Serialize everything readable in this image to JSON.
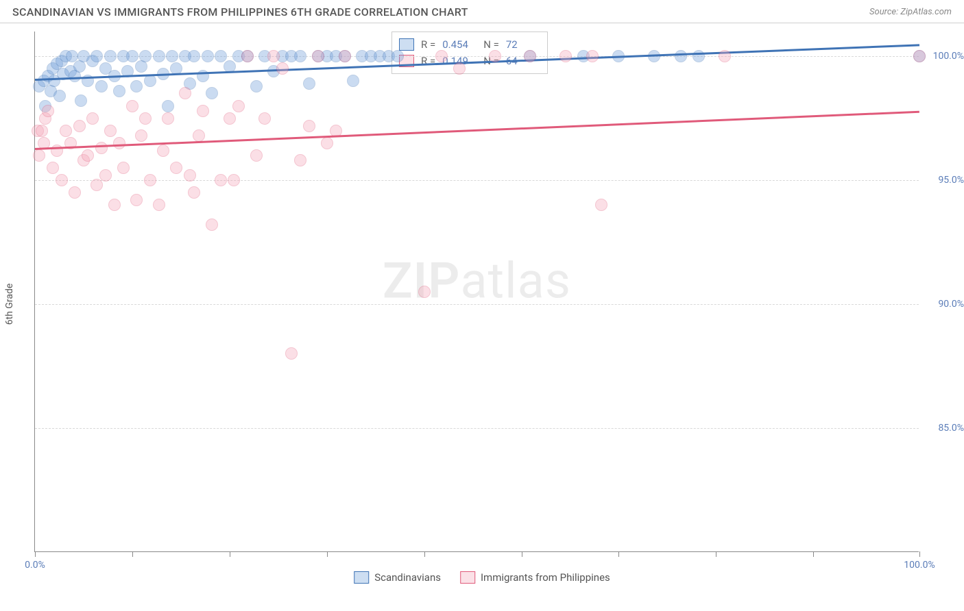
{
  "header": {
    "title": "SCANDINAVIAN VS IMMIGRANTS FROM PHILIPPINES 6TH GRADE CORRELATION CHART",
    "source": "Source: ZipAtlas.com"
  },
  "chart": {
    "type": "scatter",
    "ylabel": "6th Grade",
    "xlim": [
      0,
      100
    ],
    "ylim": [
      80,
      101
    ],
    "xtick_positions": [
      0,
      11,
      22,
      33,
      44,
      55,
      66,
      77,
      88,
      100
    ],
    "xtick_labels": {
      "0": "0.0%",
      "100": "100.0%"
    },
    "ytick_positions": [
      85,
      90,
      95,
      100
    ],
    "ytick_labels": {
      "85": "85.0%",
      "90": "90.0%",
      "95": "95.0%",
      "100": "100.0%"
    },
    "grid_color": "#d8d8d8",
    "background_color": "#ffffff",
    "marker_radius": 9,
    "marker_opacity": 0.35,
    "watermark": "ZIPatlas",
    "series": [
      {
        "name": "Scandinavians",
        "color_fill": "#6a9bd8",
        "color_stroke": "#3f73b5",
        "R": "0.454",
        "N": "72",
        "trend": {
          "x1": 0,
          "y1": 99.1,
          "x2": 100,
          "y2": 100.5,
          "color": "#3f73b5"
        },
        "points": [
          [
            0.5,
            98.8
          ],
          [
            1,
            99.0
          ],
          [
            1.2,
            98.0
          ],
          [
            1.5,
            99.2
          ],
          [
            1.8,
            98.6
          ],
          [
            2,
            99.5
          ],
          [
            2.2,
            99.0
          ],
          [
            2.5,
            99.7
          ],
          [
            2.8,
            98.4
          ],
          [
            3,
            99.8
          ],
          [
            3.2,
            99.3
          ],
          [
            3.5,
            100.0
          ],
          [
            4,
            99.4
          ],
          [
            4.2,
            100.0
          ],
          [
            4.5,
            99.2
          ],
          [
            5,
            99.6
          ],
          [
            5.2,
            98.2
          ],
          [
            5.5,
            100.0
          ],
          [
            6,
            99.0
          ],
          [
            6.5,
            99.8
          ],
          [
            7,
            100.0
          ],
          [
            7.5,
            98.8
          ],
          [
            8,
            99.5
          ],
          [
            8.5,
            100.0
          ],
          [
            9,
            99.2
          ],
          [
            9.5,
            98.6
          ],
          [
            10,
            100.0
          ],
          [
            10.5,
            99.4
          ],
          [
            11,
            100.0
          ],
          [
            11.5,
            98.8
          ],
          [
            12,
            99.6
          ],
          [
            12.5,
            100.0
          ],
          [
            13,
            99.0
          ],
          [
            14,
            100.0
          ],
          [
            14.5,
            99.3
          ],
          [
            15,
            98.0
          ],
          [
            15.5,
            100.0
          ],
          [
            16,
            99.5
          ],
          [
            17,
            100.0
          ],
          [
            17.5,
            98.9
          ],
          [
            18,
            100.0
          ],
          [
            19,
            99.2
          ],
          [
            19.5,
            100.0
          ],
          [
            20,
            98.5
          ],
          [
            21,
            100.0
          ],
          [
            22,
            99.6
          ],
          [
            23,
            100.0
          ],
          [
            24,
            100.0
          ],
          [
            25,
            98.8
          ],
          [
            26,
            100.0
          ],
          [
            27,
            99.4
          ],
          [
            28,
            100.0
          ],
          [
            29,
            100.0
          ],
          [
            30,
            100.0
          ],
          [
            31,
            98.9
          ],
          [
            32,
            100.0
          ],
          [
            33,
            100.0
          ],
          [
            34,
            100.0
          ],
          [
            35,
            100.0
          ],
          [
            36,
            99.0
          ],
          [
            37,
            100.0
          ],
          [
            38,
            100.0
          ],
          [
            39,
            100.0
          ],
          [
            40,
            100.0
          ],
          [
            41,
            100.0
          ],
          [
            56,
            100.0
          ],
          [
            62,
            100.0
          ],
          [
            66,
            100.0
          ],
          [
            70,
            100.0
          ],
          [
            73,
            100.0
          ],
          [
            75,
            100.0
          ],
          [
            100,
            100.0
          ]
        ]
      },
      {
        "name": "Immigrants from Philippines",
        "color_fill": "#f4a6b8",
        "color_stroke": "#e05a7a",
        "R": "0.149",
        "N": "64",
        "trend": {
          "x1": 0,
          "y1": 96.3,
          "x2": 100,
          "y2": 97.8,
          "color": "#e05a7a"
        },
        "points": [
          [
            0.3,
            97.0
          ],
          [
            0.5,
            96.0
          ],
          [
            0.8,
            97.0
          ],
          [
            1,
            96.5
          ],
          [
            1.2,
            97.5
          ],
          [
            1.5,
            97.8
          ],
          [
            2,
            95.5
          ],
          [
            2.5,
            96.2
          ],
          [
            3,
            95.0
          ],
          [
            3.5,
            97.0
          ],
          [
            4,
            96.5
          ],
          [
            4.5,
            94.5
          ],
          [
            5,
            97.2
          ],
          [
            5.5,
            95.8
          ],
          [
            6,
            96.0
          ],
          [
            6.5,
            97.5
          ],
          [
            7,
            94.8
          ],
          [
            7.5,
            96.3
          ],
          [
            8,
            95.2
          ],
          [
            8.5,
            97.0
          ],
          [
            9,
            94.0
          ],
          [
            9.5,
            96.5
          ],
          [
            10,
            95.5
          ],
          [
            11,
            98.0
          ],
          [
            11.5,
            94.2
          ],
          [
            12,
            96.8
          ],
          [
            12.5,
            97.5
          ],
          [
            13,
            95.0
          ],
          [
            14,
            94.0
          ],
          [
            14.5,
            96.2
          ],
          [
            15,
            97.5
          ],
          [
            16,
            95.5
          ],
          [
            17,
            98.5
          ],
          [
            17.5,
            95.2
          ],
          [
            18,
            94.5
          ],
          [
            18.5,
            96.8
          ],
          [
            19,
            97.8
          ],
          [
            20,
            93.2
          ],
          [
            21,
            95.0
          ],
          [
            22,
            97.5
          ],
          [
            22.5,
            95.0
          ],
          [
            23,
            98.0
          ],
          [
            24,
            100.0
          ],
          [
            25,
            96.0
          ],
          [
            26,
            97.5
          ],
          [
            27,
            100.0
          ],
          [
            28,
            99.5
          ],
          [
            29,
            88.0
          ],
          [
            30,
            95.8
          ],
          [
            31,
            97.2
          ],
          [
            32,
            100.0
          ],
          [
            33,
            96.5
          ],
          [
            34,
            97.0
          ],
          [
            35,
            100.0
          ],
          [
            44,
            90.5
          ],
          [
            46,
            100.0
          ],
          [
            48,
            99.5
          ],
          [
            52,
            100.0
          ],
          [
            56,
            100.0
          ],
          [
            60,
            100.0
          ],
          [
            63,
            100.0
          ],
          [
            64,
            94.0
          ],
          [
            78,
            100.0
          ],
          [
            100,
            100.0
          ]
        ]
      }
    ],
    "legend": {
      "bottom_items": [
        "Scandinavians",
        "Immigrants from Philippines"
      ]
    }
  }
}
